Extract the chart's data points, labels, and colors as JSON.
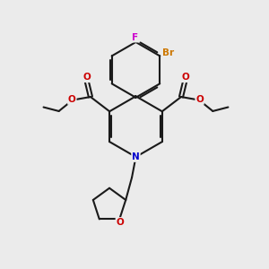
{
  "background_color": "#ebebeb",
  "bond_color": "#1a1a1a",
  "atom_colors": {
    "N": "#0000cc",
    "O": "#cc0000",
    "F": "#cc00cc",
    "Br": "#cc7700",
    "C": "#1a1a1a"
  },
  "figsize": [
    3.0,
    3.0
  ],
  "dpi": 100
}
